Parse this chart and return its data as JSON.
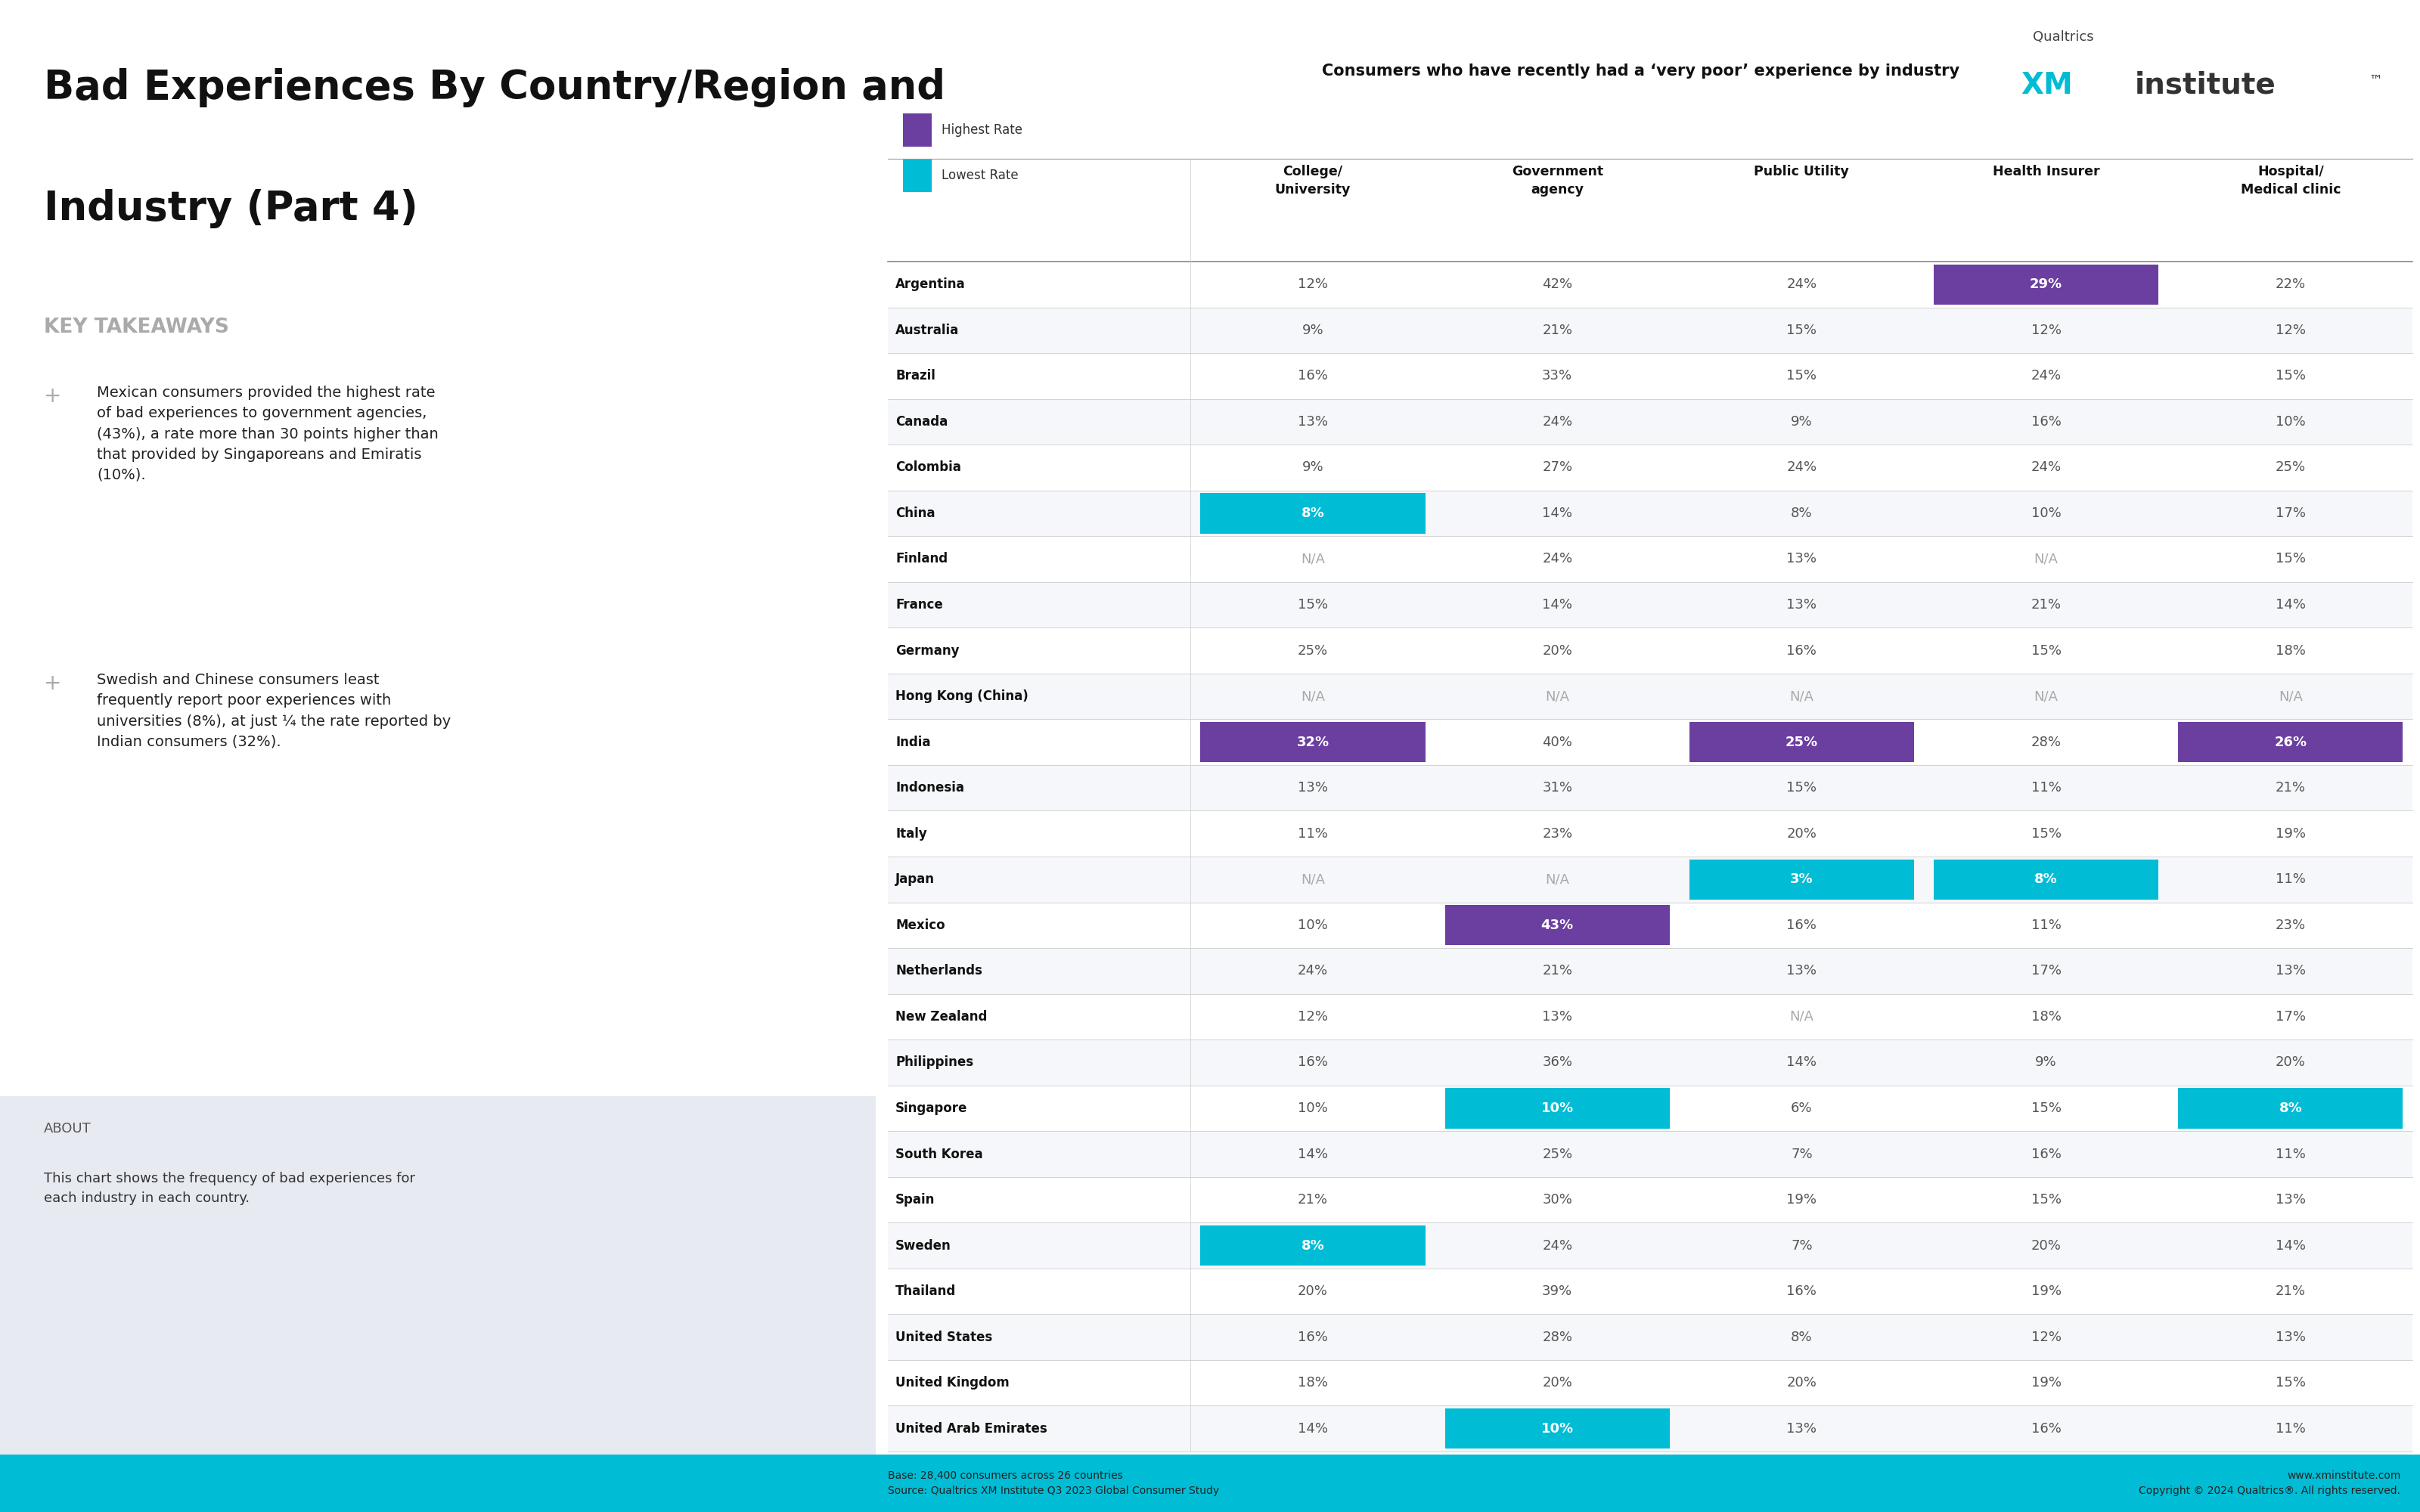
{
  "title_line1": "Bad Experiences By Country/Region and",
  "title_line2": "Industry (Part 4)",
  "subtitle": "Consumers who have recently had a ‘very poor’ experience by industry",
  "key_takeaways_title": "KEY TAKEAWAYS",
  "key_takeaway1": "Mexican consumers provided the highest rate\nof bad experiences to government agencies,\n(43%), a rate more than 30 points higher than\nthat provided by Singaporeans and Emiratis\n(10%).",
  "key_takeaway2": "Swedish and Chinese consumers least\nfrequently report poor experiences with\nuniversities (8%), at just ¼ the rate reported by\nIndian consumers (32%).",
  "about_title": "ABOUT",
  "about_text": "This chart shows the frequency of bad experiences for\neach industry in each country.",
  "footer_left": "Base: 28,400 consumers across 26 countries\nSource: Qualtrics XM Institute Q3 2023 Global Consumer Study",
  "footer_right": "www.xminstitute.com\nCopyright © 2024 Qualtrics®. All rights reserved.",
  "legend_highest": "Highest Rate",
  "legend_lowest": "Lowest Rate",
  "highest_color": "#6B3FA0",
  "lowest_color": "#00BCD4",
  "columns": [
    "College/\nUniversity",
    "Government\nagency",
    "Public Utility",
    "Health Insurer",
    "Hospital/\nMedical clinic"
  ],
  "countries": [
    "Argentina",
    "Australia",
    "Brazil",
    "Canada",
    "Colombia",
    "China",
    "Finland",
    "France",
    "Germany",
    "Hong Kong (China)",
    "India",
    "Indonesia",
    "Italy",
    "Japan",
    "Mexico",
    "Netherlands",
    "New Zealand",
    "Philippines",
    "Singapore",
    "South Korea",
    "Spain",
    "Sweden",
    "Thailand",
    "United States",
    "United Kingdom",
    "United Arab Emirates"
  ],
  "data": {
    "Argentina": [
      "12%",
      "42%",
      "24%",
      "29%",
      "22%"
    ],
    "Australia": [
      "9%",
      "21%",
      "15%",
      "12%",
      "12%"
    ],
    "Brazil": [
      "16%",
      "33%",
      "15%",
      "24%",
      "15%"
    ],
    "Canada": [
      "13%",
      "24%",
      "9%",
      "16%",
      "10%"
    ],
    "Colombia": [
      "9%",
      "27%",
      "24%",
      "24%",
      "25%"
    ],
    "China": [
      "8%",
      "14%",
      "8%",
      "10%",
      "17%"
    ],
    "Finland": [
      "N/A",
      "24%",
      "13%",
      "N/A",
      "15%"
    ],
    "France": [
      "15%",
      "14%",
      "13%",
      "21%",
      "14%"
    ],
    "Germany": [
      "25%",
      "20%",
      "16%",
      "15%",
      "18%"
    ],
    "Hong Kong (China)": [
      "N/A",
      "N/A",
      "N/A",
      "N/A",
      "N/A"
    ],
    "India": [
      "32%",
      "40%",
      "25%",
      "28%",
      "26%"
    ],
    "Indonesia": [
      "13%",
      "31%",
      "15%",
      "11%",
      "21%"
    ],
    "Italy": [
      "11%",
      "23%",
      "20%",
      "15%",
      "19%"
    ],
    "Japan": [
      "N/A",
      "N/A",
      "3%",
      "8%",
      "11%"
    ],
    "Mexico": [
      "10%",
      "43%",
      "16%",
      "11%",
      "23%"
    ],
    "Netherlands": [
      "24%",
      "21%",
      "13%",
      "17%",
      "13%"
    ],
    "New Zealand": [
      "12%",
      "13%",
      "N/A",
      "18%",
      "17%"
    ],
    "Philippines": [
      "16%",
      "36%",
      "14%",
      "9%",
      "20%"
    ],
    "Singapore": [
      "10%",
      "10%",
      "6%",
      "15%",
      "8%"
    ],
    "South Korea": [
      "14%",
      "25%",
      "7%",
      "16%",
      "11%"
    ],
    "Spain": [
      "21%",
      "30%",
      "19%",
      "15%",
      "13%"
    ],
    "Sweden": [
      "8%",
      "24%",
      "7%",
      "20%",
      "14%"
    ],
    "Thailand": [
      "20%",
      "39%",
      "16%",
      "19%",
      "21%"
    ],
    "United States": [
      "16%",
      "28%",
      "8%",
      "12%",
      "13%"
    ],
    "United Kingdom": [
      "18%",
      "20%",
      "20%",
      "19%",
      "15%"
    ],
    "United Arab Emirates": [
      "14%",
      "10%",
      "13%",
      "16%",
      "11%"
    ]
  },
  "highlights": {
    "Argentina": [
      null,
      null,
      null,
      "highest",
      null
    ],
    "China": [
      "lowest",
      null,
      null,
      null,
      null
    ],
    "India": [
      "highest",
      null,
      "highest",
      null,
      "highest"
    ],
    "Japan": [
      null,
      null,
      "lowest",
      "lowest",
      null
    ],
    "Mexico": [
      null,
      "highest",
      null,
      null,
      null
    ],
    "Singapore": [
      null,
      "lowest",
      null,
      null,
      "lowest"
    ],
    "Sweden": [
      "lowest",
      null,
      null,
      null,
      null
    ],
    "United Arab Emirates": [
      null,
      "lowest",
      null,
      null,
      null
    ]
  },
  "background_color": "#FFFFFF",
  "about_bg": "#E8EAF2",
  "footer_bg": "#00BCD4",
  "separator_color": "#CCCCCC"
}
